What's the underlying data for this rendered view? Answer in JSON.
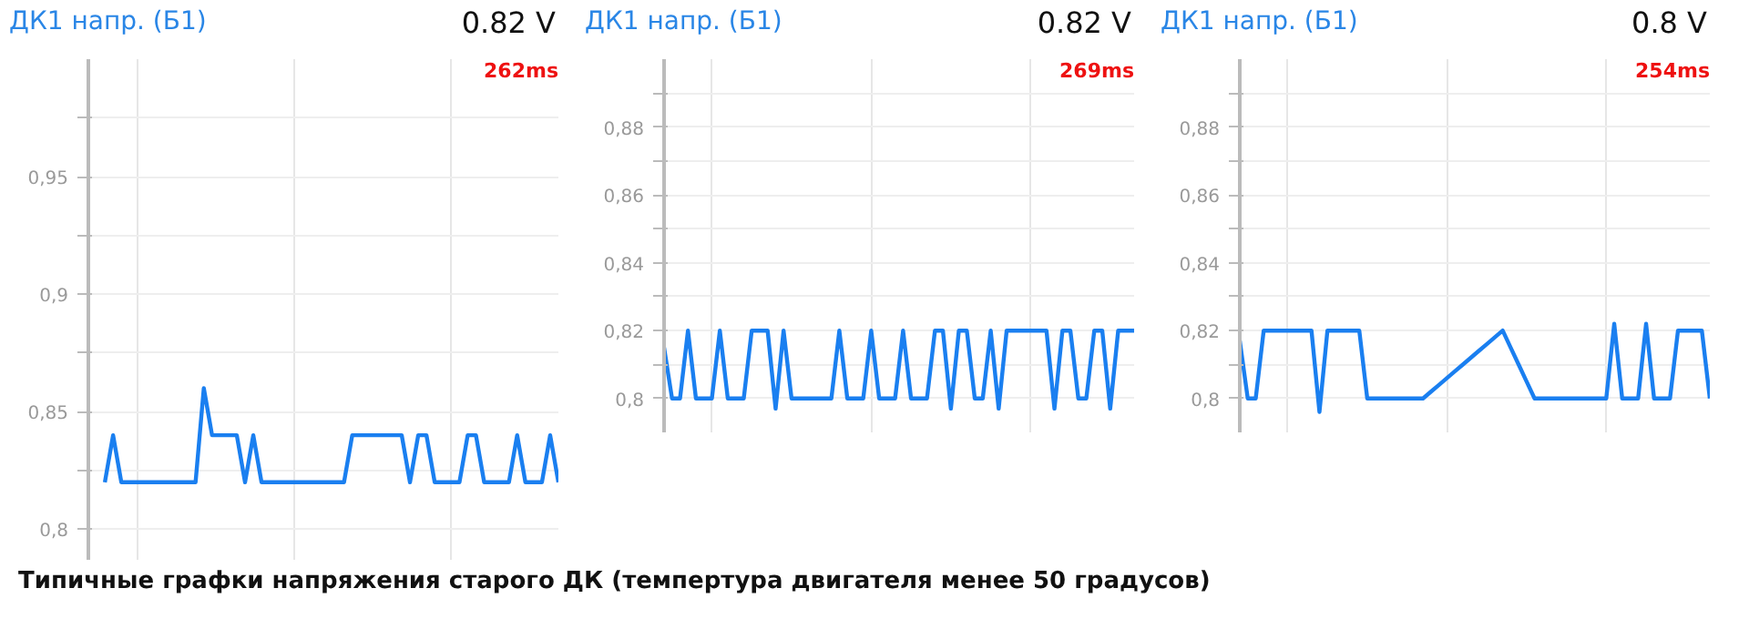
{
  "chart_data": [
    {
      "type": "line",
      "title": "ДК1 напр. (Б1)",
      "subtitle": "0.82 V",
      "annotations": [
        "262ms",
        "Типичные графки напряжения старого ДК (темпертура двигателя менее 50 градусов)"
      ],
      "categories": [
        null,
        null,
        null,
        null,
        null,
        null,
        null,
        null,
        null,
        null,
        null,
        null,
        null,
        null,
        null,
        null,
        null,
        null,
        null,
        null,
        null,
        null,
        null,
        null,
        null,
        null,
        null,
        null,
        null,
        null,
        null,
        null,
        null,
        null,
        null,
        null,
        null,
        null,
        null,
        null,
        null,
        null,
        null,
        null,
        null,
        null,
        null,
        null,
        null,
        null,
        null,
        null,
        null,
        null,
        null,
        null,
        null,
        null
      ],
      "ylim": [
        0.787,
        1.0
      ],
      "yticks": [
        {
          "value": 0.8,
          "label": "0,8"
        },
        {
          "value": 0.825,
          "label": null
        },
        {
          "value": 0.85,
          "label": "0,85"
        },
        {
          "value": 0.875,
          "label": null
        },
        {
          "value": 0.9,
          "label": "0,9"
        },
        {
          "value": 0.925,
          "label": null
        },
        {
          "value": 0.95,
          "label": "0,95"
        },
        {
          "value": 0.975,
          "label": null
        }
      ],
      "tick_labels": "y",
      "grid": true,
      "series": [
        {
          "color": "#1a7ff0",
          "values": [
            null,
            null,
            0.82,
            0.84,
            0.82,
            0.82,
            0.82,
            0.82,
            0.82,
            0.82,
            0.82,
            0.82,
            0.82,
            0.82,
            0.86,
            0.84,
            0.84,
            0.84,
            0.84,
            0.82,
            0.84,
            0.82,
            0.82,
            0.82,
            0.82,
            0.82,
            0.82,
            0.82,
            0.82,
            0.82,
            0.82,
            0.82,
            0.84,
            0.84,
            0.84,
            0.84,
            0.84,
            0.84,
            0.84,
            0.82,
            0.84,
            0.84,
            0.82,
            0.82,
            0.82,
            0.82,
            0.84,
            0.84,
            0.82,
            0.82,
            0.82,
            0.82,
            0.84,
            0.82,
            0.82,
            0.82,
            0.84,
            0.82
          ]
        }
      ]
    },
    {
      "type": "line",
      "title": "ДК1 напр. (Б1)",
      "subtitle": "0.82 V",
      "annotations": [
        "269ms"
      ],
      "categories": [
        null,
        null,
        null,
        null,
        null,
        null,
        null,
        null,
        null,
        null,
        null,
        null,
        null,
        null,
        null,
        null,
        null,
        null,
        null,
        null,
        null,
        null,
        null,
        null,
        null,
        null,
        null,
        null,
        null,
        null,
        null,
        null,
        null,
        null,
        null,
        null,
        null,
        null,
        null,
        null,
        null,
        null,
        null,
        null,
        null,
        null,
        null,
        null,
        null,
        null,
        null,
        null,
        null,
        null,
        null,
        null,
        null,
        null,
        null,
        null
      ],
      "ylim": [
        0.79,
        0.9
      ],
      "yticks": [
        {
          "value": 0.8,
          "label": "0,8"
        },
        {
          "value": 0.81,
          "label": null
        },
        {
          "value": 0.82,
          "label": "0,82"
        },
        {
          "value": 0.83,
          "label": null
        },
        {
          "value": 0.84,
          "label": "0,84"
        },
        {
          "value": 0.85,
          "label": null
        },
        {
          "value": 0.86,
          "label": "0,86"
        },
        {
          "value": 0.87,
          "label": null
        },
        {
          "value": 0.88,
          "label": "0,88"
        },
        {
          "value": 0.89,
          "label": null
        }
      ],
      "tick_labels": "y",
      "grid": true,
      "series": [
        {
          "color": "#1a7ff0",
          "values": [
            0.815,
            0.8,
            0.8,
            0.82,
            0.8,
            0.8,
            0.8,
            0.82,
            0.8,
            0.8,
            0.8,
            0.82,
            0.82,
            0.82,
            0.797,
            0.82,
            0.8,
            0.8,
            0.8,
            0.8,
            0.8,
            0.8,
            0.82,
            0.8,
            0.8,
            0.8,
            0.82,
            0.8,
            0.8,
            0.8,
            0.82,
            0.8,
            0.8,
            0.8,
            0.82,
            0.82,
            0.797,
            0.82,
            0.82,
            0.8,
            0.8,
            0.82,
            0.797,
            0.82,
            0.82,
            0.82,
            0.82,
            0.82,
            0.82,
            0.797,
            0.82,
            0.82,
            0.8,
            0.8,
            0.82,
            0.82,
            0.797,
            0.82,
            0.82,
            0.82
          ]
        }
      ]
    },
    {
      "type": "line",
      "title": "ДК1 напр. (Б1)",
      "subtitle": "0.8 V",
      "annotations": [
        "254ms"
      ],
      "categories": [
        null,
        null,
        null,
        null,
        null,
        null,
        null,
        null,
        null,
        null,
        null,
        null,
        null,
        null,
        null,
        null,
        null,
        null,
        null,
        null,
        null,
        null,
        null,
        null,
        null,
        null,
        null,
        null,
        null,
        null,
        null,
        null,
        null,
        null,
        null,
        null,
        null,
        null,
        null,
        null,
        null,
        null,
        null,
        null,
        null,
        null,
        null,
        null,
        null,
        null,
        null,
        null,
        null,
        null,
        null,
        null,
        null,
        null,
        null,
        null
      ],
      "ylim": [
        0.79,
        0.9
      ],
      "yticks": [
        {
          "value": 0.8,
          "label": "0,8"
        },
        {
          "value": 0.81,
          "label": null
        },
        {
          "value": 0.82,
          "label": "0,82"
        },
        {
          "value": 0.83,
          "label": null
        },
        {
          "value": 0.84,
          "label": "0,84"
        },
        {
          "value": 0.85,
          "label": null
        },
        {
          "value": 0.86,
          "label": "0,86"
        },
        {
          "value": 0.87,
          "label": null
        },
        {
          "value": 0.88,
          "label": "0,88"
        },
        {
          "value": 0.89,
          "label": null
        }
      ],
      "tick_labels": "y",
      "grid": true,
      "series": [
        {
          "color": "#1a7ff0",
          "values": [
            0.817,
            0.8,
            0.8,
            0.82,
            0.82,
            0.82,
            0.82,
            0.82,
            0.82,
            0.82,
            0.796,
            0.82,
            0.82,
            0.82,
            0.82,
            0.82,
            0.8,
            0.8,
            0.8,
            0.8,
            0.8,
            0.8,
            0.8,
            0.8,
            0.802,
            0.804,
            0.806,
            0.808,
            0.81,
            0.812,
            0.814,
            0.816,
            0.818,
            0.82,
            0.815,
            0.81,
            0.805,
            0.8,
            0.8,
            0.8,
            0.8,
            0.8,
            0.8,
            0.8,
            0.8,
            0.8,
            0.8,
            0.822,
            0.8,
            0.8,
            0.8,
            0.822,
            0.8,
            0.8,
            0.8,
            0.82,
            0.82,
            0.82,
            0.82,
            0.8
          ]
        }
      ]
    }
  ]
}
